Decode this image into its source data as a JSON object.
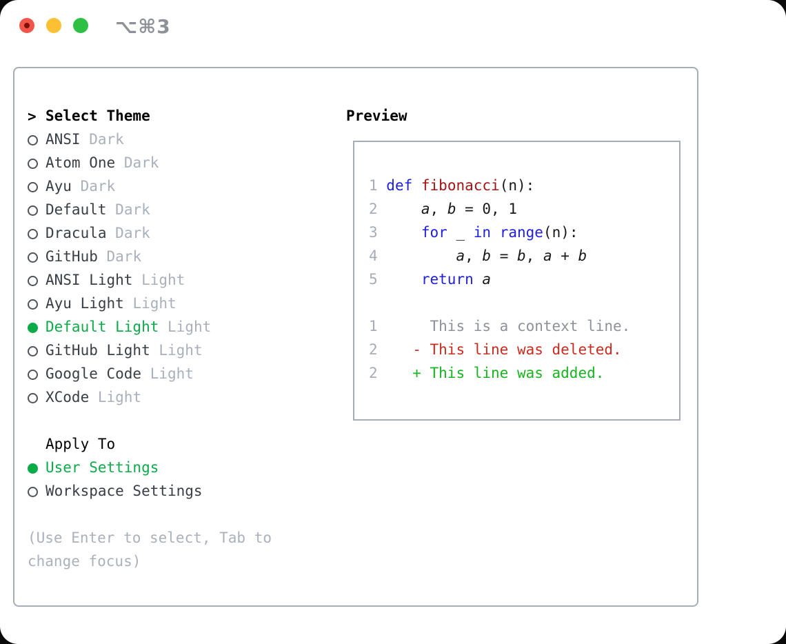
{
  "window": {
    "title": "⌥⌘3"
  },
  "titlebar": {
    "buttons": [
      {
        "name": "close",
        "color": "#f2564a"
      },
      {
        "name": "minimize",
        "color": "#fcc034"
      },
      {
        "name": "zoom",
        "color": "#2ec043"
      }
    ]
  },
  "theme_picker": {
    "prompt": ">",
    "title": "Select Theme",
    "items": [
      {
        "name": "ANSI",
        "variant": "Dark",
        "selected": false
      },
      {
        "name": "Atom One",
        "variant": "Dark",
        "selected": false
      },
      {
        "name": "Ayu",
        "variant": "Dark",
        "selected": false
      },
      {
        "name": "Default",
        "variant": "Dark",
        "selected": false
      },
      {
        "name": "Dracula",
        "variant": "Dark",
        "selected": false
      },
      {
        "name": "GitHub",
        "variant": "Dark",
        "selected": false
      },
      {
        "name": "ANSI Light",
        "variant": "Light",
        "selected": false
      },
      {
        "name": "Ayu Light",
        "variant": "Light",
        "selected": false
      },
      {
        "name": "Default Light",
        "variant": "Light",
        "selected": true
      },
      {
        "name": "GitHub Light",
        "variant": "Light",
        "selected": false
      },
      {
        "name": "Google Code",
        "variant": "Light",
        "selected": false
      },
      {
        "name": "XCode",
        "variant": "Light",
        "selected": false
      }
    ]
  },
  "apply_to": {
    "title": "Apply To",
    "options": [
      {
        "label": "User Settings",
        "selected": true
      },
      {
        "label": "Workspace Settings",
        "selected": false
      }
    ]
  },
  "hint": "(Use Enter to select, Tab to change focus)",
  "preview": {
    "title": "Preview",
    "lines": [
      {
        "num": "1",
        "segs": [
          [
            "kw",
            "def"
          ],
          [
            "plain",
            " "
          ],
          [
            "fn",
            "fibonacci"
          ],
          [
            "plain",
            "(n):"
          ]
        ]
      },
      {
        "num": "2",
        "segs": [
          [
            "plain",
            "    "
          ],
          [
            "var",
            "a"
          ],
          [
            "plain",
            ", "
          ],
          [
            "var",
            "b"
          ],
          [
            "plain",
            " = 0, 1"
          ]
        ]
      },
      {
        "num": "3",
        "segs": [
          [
            "plain",
            "    "
          ],
          [
            "kw",
            "for"
          ],
          [
            "plain",
            " _ "
          ],
          [
            "kw",
            "in"
          ],
          [
            "plain",
            " "
          ],
          [
            "kw",
            "range"
          ],
          [
            "plain",
            "(n):"
          ]
        ]
      },
      {
        "num": "4",
        "segs": [
          [
            "plain",
            "        "
          ],
          [
            "var",
            "a"
          ],
          [
            "plain",
            ", "
          ],
          [
            "var",
            "b"
          ],
          [
            "plain",
            " = "
          ],
          [
            "var",
            "b"
          ],
          [
            "plain",
            ", "
          ],
          [
            "var",
            "a"
          ],
          [
            "plain",
            " + "
          ],
          [
            "var",
            "b"
          ]
        ]
      },
      {
        "num": "5",
        "segs": [
          [
            "plain",
            "    "
          ],
          [
            "kw",
            "return"
          ],
          [
            "plain",
            " "
          ],
          [
            "var",
            "a"
          ]
        ]
      },
      {
        "num": "",
        "segs": []
      },
      {
        "num": "1",
        "segs": [
          [
            "ctx",
            "     This is a context line."
          ]
        ]
      },
      {
        "num": "2",
        "segs": [
          [
            "del",
            "   - This line was deleted."
          ]
        ]
      },
      {
        "num": "2",
        "segs": [
          [
            "add",
            "   + This line was added."
          ]
        ]
      }
    ]
  },
  "colors": {
    "selection_green": "#0cab49",
    "keyword_blue": "#2020dd",
    "function_red": "#a31515",
    "deleted_red": "#cb2b1d",
    "added_green": "#16b520",
    "line_number_gray": "#a4acb8",
    "context_gray": "#8d9299",
    "variant_gray": "#a8b0bc",
    "hint_gray": "#a9b1bc",
    "border_gray": "#a6adb7",
    "traffic_red": "#f2564a",
    "traffic_yellow": "#fcc034",
    "traffic_green": "#2ec043"
  }
}
